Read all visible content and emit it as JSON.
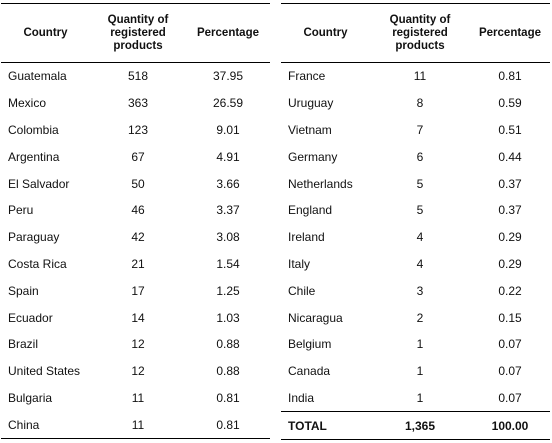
{
  "tables": [
    {
      "headers": [
        "Country",
        "Quantity of registered products",
        "Percentage"
      ],
      "rows": [
        [
          "Guatemala",
          "518",
          "37.95"
        ],
        [
          "Mexico",
          "363",
          "26.59"
        ],
        [
          "Colombia",
          "123",
          "9.01"
        ],
        [
          "Argentina",
          "67",
          "4.91"
        ],
        [
          "El Salvador",
          "50",
          "3.66"
        ],
        [
          "Peru",
          "46",
          "3.37"
        ],
        [
          "Paraguay",
          "42",
          "3.08"
        ],
        [
          "Costa Rica",
          "21",
          "1.54"
        ],
        [
          "Spain",
          "17",
          "1.25"
        ],
        [
          "Ecuador",
          "14",
          "1.03"
        ],
        [
          "Brazil",
          "12",
          "0.88"
        ],
        [
          "United States",
          "12",
          "0.88"
        ],
        [
          "Bulgaria",
          "11",
          "0.81"
        ],
        [
          "China",
          "11",
          "0.81"
        ]
      ]
    },
    {
      "headers": [
        "Country",
        "Quantity of registered products",
        "Percentage"
      ],
      "rows": [
        [
          "France",
          "11",
          "0.81"
        ],
        [
          "Uruguay",
          "8",
          "0.59"
        ],
        [
          "Vietnam",
          "7",
          "0.51"
        ],
        [
          "Germany",
          "6",
          "0.44"
        ],
        [
          "Netherlands",
          "5",
          "0.37"
        ],
        [
          "England",
          "5",
          "0.37"
        ],
        [
          "Ireland",
          "4",
          "0.29"
        ],
        [
          "Italy",
          "4",
          "0.29"
        ],
        [
          "Chile",
          "3",
          "0.22"
        ],
        [
          "Nicaragua",
          "2",
          "0.15"
        ],
        [
          "Belgium",
          "1",
          "0.07"
        ],
        [
          "Canada",
          "1",
          "0.07"
        ],
        [
          "India",
          "1",
          "0.07"
        ]
      ],
      "total": [
        "TOTAL",
        "1,365",
        "100.00"
      ]
    }
  ]
}
